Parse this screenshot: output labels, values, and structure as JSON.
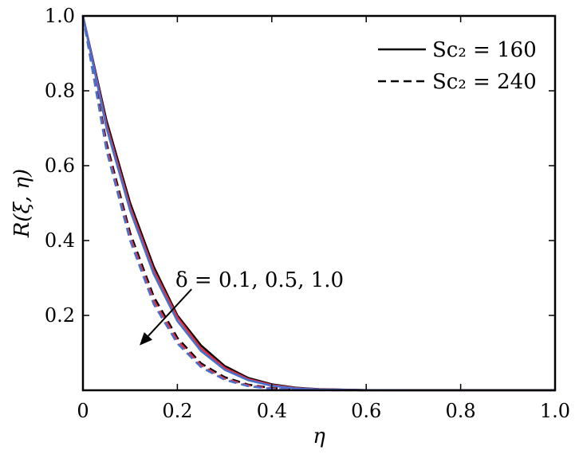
{
  "chart_data": {
    "type": "line",
    "xlabel": "η",
    "ylabel": "R(ξ, η)",
    "xlim": [
      0,
      1.0
    ],
    "ylim": [
      0,
      1.0
    ],
    "x_ticks": [
      0,
      0.2,
      0.4,
      0.6,
      0.8,
      1.0
    ],
    "x_tick_labels": [
      "0",
      "0.2",
      "0.4",
      "0.6",
      "0.8",
      "1.0"
    ],
    "y_ticks": [
      0.2,
      0.4,
      0.6,
      0.8,
      1.0
    ],
    "y_tick_labels": [
      "0.2",
      "0.4",
      "0.6",
      "0.8",
      "1.0"
    ],
    "grid": false,
    "legend_position": "top-right",
    "legend": [
      {
        "label": "Sc₂ = 160",
        "line_style": "solid"
      },
      {
        "label": "Sc₂ = 240",
        "line_style": "dashed"
      }
    ],
    "annotation": {
      "text": "δ = 0.1, 0.5, 1.0",
      "arrow_from": [
        0.23,
        0.27
      ],
      "arrow_to": [
        0.12,
        0.12
      ]
    },
    "series": [
      {
        "delta": 0.1,
        "Sc2": 160,
        "color": "#000000",
        "line_style": "solid",
        "x": [
          0,
          0.05,
          0.1,
          0.15,
          0.2,
          0.25,
          0.3,
          0.35,
          0.4,
          0.45,
          0.5,
          0.6,
          0.7,
          0.8,
          0.9,
          1.0
        ],
        "y": [
          1.0,
          0.72,
          0.5,
          0.33,
          0.2,
          0.12,
          0.065,
          0.033,
          0.016,
          0.007,
          0.003,
          0.0005,
          0,
          0,
          0,
          0
        ]
      },
      {
        "delta": 0.5,
        "Sc2": 160,
        "color": "#e0303a",
        "line_style": "solid",
        "x": [
          0,
          0.05,
          0.1,
          0.15,
          0.2,
          0.25,
          0.3,
          0.35,
          0.4,
          0.45,
          0.5,
          0.6,
          0.7,
          0.8,
          0.9,
          1.0
        ],
        "y": [
          1.0,
          0.71,
          0.49,
          0.32,
          0.195,
          0.112,
          0.06,
          0.03,
          0.014,
          0.006,
          0.0025,
          0.0004,
          0,
          0,
          0,
          0
        ]
      },
      {
        "delta": 1.0,
        "Sc2": 160,
        "color": "#4a6fd0",
        "line_style": "solid",
        "x": [
          0,
          0.05,
          0.1,
          0.15,
          0.2,
          0.25,
          0.3,
          0.35,
          0.4,
          0.45,
          0.5,
          0.6,
          0.7,
          0.8,
          0.9,
          1.0
        ],
        "y": [
          1.0,
          0.7,
          0.48,
          0.31,
          0.185,
          0.105,
          0.055,
          0.027,
          0.012,
          0.005,
          0.002,
          0.0003,
          0,
          0,
          0,
          0
        ]
      },
      {
        "delta": 0.1,
        "Sc2": 240,
        "color": "#000000",
        "line_style": "dashed",
        "x": [
          0,
          0.05,
          0.1,
          0.15,
          0.2,
          0.25,
          0.3,
          0.35,
          0.4,
          0.45,
          0.5,
          0.6,
          0.7,
          0.8,
          0.9,
          1.0
        ],
        "y": [
          1.0,
          0.66,
          0.42,
          0.25,
          0.14,
          0.072,
          0.035,
          0.015,
          0.006,
          0.002,
          0.0008,
          0.0001,
          0,
          0,
          0,
          0
        ]
      },
      {
        "delta": 0.5,
        "Sc2": 240,
        "color": "#e0303a",
        "line_style": "dashed",
        "x": [
          0,
          0.05,
          0.1,
          0.15,
          0.2,
          0.25,
          0.3,
          0.35,
          0.4,
          0.45,
          0.5,
          0.6,
          0.7,
          0.8,
          0.9,
          1.0
        ],
        "y": [
          1.0,
          0.65,
          0.41,
          0.24,
          0.133,
          0.067,
          0.031,
          0.013,
          0.005,
          0.0018,
          0.0006,
          0.0001,
          0,
          0,
          0,
          0
        ]
      },
      {
        "delta": 1.0,
        "Sc2": 240,
        "color": "#4a6fd0",
        "line_style": "dashed",
        "x": [
          0,
          0.05,
          0.1,
          0.15,
          0.2,
          0.25,
          0.3,
          0.35,
          0.4,
          0.45,
          0.5,
          0.6,
          0.7,
          0.8,
          0.9,
          1.0
        ],
        "y": [
          1.0,
          0.64,
          0.4,
          0.23,
          0.125,
          0.062,
          0.028,
          0.011,
          0.004,
          0.0014,
          0.0005,
          0.0001,
          0,
          0,
          0,
          0
        ]
      }
    ]
  }
}
